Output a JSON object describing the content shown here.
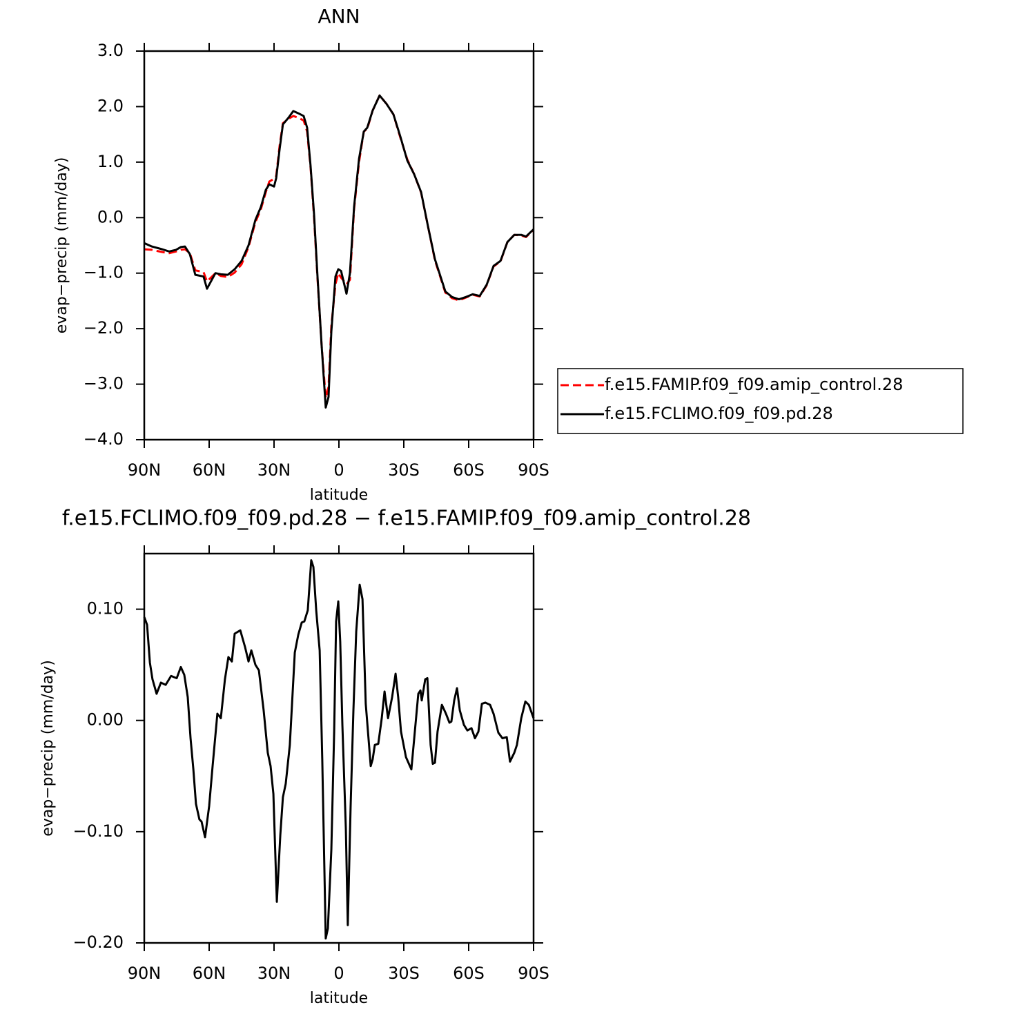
{
  "chart_data": [
    {
      "type": "line",
      "title": "ANN",
      "x_label": "latitude",
      "y_label": "evap−precip (mm/day)",
      "xlim": [
        90,
        -90
      ],
      "xticks": [
        {
          "value": 90,
          "label": "90N"
        },
        {
          "value": 60,
          "label": "60N"
        },
        {
          "value": 30,
          "label": "30N"
        },
        0,
        {
          "value": -30,
          "label": "30S"
        },
        {
          "value": -60,
          "label": "60S"
        },
        {
          "value": -90,
          "label": "90S"
        }
      ],
      "ylim": [
        -4,
        3
      ],
      "yticks": [
        {
          "value": -4,
          "label": "−4.0"
        },
        {
          "value": -3,
          "label": "−3.0"
        },
        {
          "value": -2,
          "label": "−2.0"
        },
        {
          "value": -1,
          "label": "−1.0"
        },
        {
          "value": 0,
          "label": "0.0"
        },
        {
          "value": 1,
          "label": "1.0"
        },
        {
          "value": 2,
          "label": "2.0"
        },
        {
          "value": 3,
          "label": "3.0"
        }
      ],
      "legend": true,
      "legend_position": "right",
      "x": [
        90,
        86.5,
        81.7,
        78.5,
        75.3,
        73.1,
        71.2,
        68.9,
        66.4,
        62.6,
        61.0,
        57.1,
        54.6,
        51.4,
        48.2,
        45.0,
        41.8,
        38.6,
        36.1,
        33.8,
        32.2,
        30.0,
        29.0,
        27.4,
        25.9,
        23.3,
        21.1,
        18.8,
        16.3,
        14.7,
        13.1,
        11.5,
        9.9,
        8.0,
        6.1,
        4.8,
        3.5,
        1.6,
        0.3,
        -1.0,
        -3.5,
        -5.1,
        -7.0,
        -9.3,
        -11.5,
        -13.1,
        -15.6,
        -18.8,
        -22.0,
        -25.2,
        -28.4,
        -31.6,
        -34.8,
        -38.0,
        -41.2,
        -44.4,
        -49.2,
        -52.3,
        -55.5,
        -58.7,
        -61.9,
        -65.1,
        -68.3,
        -71.5,
        -74.7,
        -77.9,
        -81.1,
        -84.3,
        -86.5,
        -90
      ],
      "series": [
        {
          "name": "f.e15.FAMIP.f09_f09.amip_control.28",
          "color": "#ff0000",
          "dashed": true,
          "values": [
            -0.57,
            -0.58,
            -0.62,
            -0.64,
            -0.61,
            -0.58,
            -0.57,
            -0.64,
            -0.95,
            -0.98,
            -1.15,
            -1.0,
            -1.05,
            -1.07,
            -0.99,
            -0.84,
            -0.53,
            -0.08,
            0.15,
            0.46,
            0.65,
            0.7,
            0.75,
            1.3,
            1.7,
            1.78,
            1.83,
            1.8,
            1.75,
            1.55,
            0.9,
            0.0,
            -1.1,
            -2.3,
            -3.25,
            -3.05,
            -1.95,
            -1.2,
            -1.0,
            -1.08,
            -1.2,
            -1.12,
            0.15,
            1.0,
            1.55,
            1.6,
            1.93,
            2.2,
            2.05,
            1.86,
            1.44,
            1.05,
            0.78,
            0.45,
            -0.16,
            -0.77,
            -1.35,
            -1.45,
            -1.49,
            -1.44,
            -1.39,
            -1.42,
            -1.22,
            -0.88,
            -0.79,
            -0.44,
            -0.31,
            -0.32,
            -0.35,
            -0.22
          ]
        },
        {
          "name": "f.e15.FCLIMO.f09_f09.pd.28",
          "color": "#000000",
          "dashed": false,
          "values": [
            -0.46,
            -0.52,
            -0.57,
            -0.61,
            -0.58,
            -0.53,
            -0.52,
            -0.66,
            -1.03,
            -1.06,
            -1.28,
            -1.0,
            -1.02,
            -1.03,
            -0.93,
            -0.78,
            -0.5,
            -0.04,
            0.19,
            0.5,
            0.6,
            0.56,
            0.71,
            1.24,
            1.68,
            1.8,
            1.92,
            1.88,
            1.83,
            1.62,
            0.93,
            0.06,
            -1.06,
            -2.3,
            -3.42,
            -3.23,
            -2.05,
            -1.06,
            -0.93,
            -0.96,
            -1.37,
            -1.0,
            0.19,
            1.06,
            1.55,
            1.62,
            1.93,
            2.2,
            2.05,
            1.86,
            1.46,
            1.03,
            0.78,
            0.46,
            -0.16,
            -0.75,
            -1.33,
            -1.43,
            -1.47,
            -1.43,
            -1.38,
            -1.41,
            -1.21,
            -0.87,
            -0.78,
            -0.44,
            -0.31,
            -0.31,
            -0.34,
            -0.21
          ]
        }
      ]
    },
    {
      "type": "line",
      "title": "f.e15.FCLIMO.f09_f09.pd.28 − f.e15.FAMIP.f09_f09.amip_control.28",
      "x_label": "latitude",
      "y_label": "evap−precip (mm/day)",
      "xlim": [
        90,
        -90
      ],
      "xticks": [
        {
          "value": 90,
          "label": "90N"
        },
        {
          "value": 60,
          "label": "60N"
        },
        {
          "value": 30,
          "label": "30N"
        },
        0,
        {
          "value": -30,
          "label": "30S"
        },
        {
          "value": -60,
          "label": "60S"
        },
        {
          "value": -90,
          "label": "90S"
        }
      ],
      "ylim": [
        -0.2,
        0.15
      ],
      "yticks": [
        {
          "value": -0.2,
          "label": "−0.20"
        },
        {
          "value": -0.1,
          "label": "−0.10"
        },
        {
          "value": 0,
          "label": "0.00"
        },
        {
          "value": 0.1,
          "label": "0.10"
        }
      ],
      "legend": false,
      "color": "#000000",
      "x": [
        90.0,
        88.7,
        87.4,
        86.2,
        84.3,
        82.3,
        80.1,
        77.6,
        75.0,
        73.1,
        71.5,
        69.9,
        68.6,
        67.3,
        66.1,
        64.5,
        63.5,
        61.9,
        60.0,
        58.4,
        56.2,
        54.6,
        52.7,
        51.1,
        49.5,
        48.2,
        45.6,
        43.4,
        41.8,
        40.5,
        38.6,
        37.0,
        34.8,
        32.9,
        31.6,
        30.3,
        28.7,
        27.1,
        25.9,
        24.6,
        22.7,
        20.4,
        18.8,
        17.2,
        16.0,
        14.4,
        12.8,
        11.8,
        10.5,
        8.9,
        7.7,
        6.1,
        5.1,
        3.5,
        2.2,
        1.3,
        0.3,
        -0.6,
        -1.6,
        -3.2,
        -4.1,
        -5.4,
        -6.7,
        -8.0,
        -9.6,
        -10.9,
        -12.4,
        -14.7,
        -15.6,
        -16.6,
        -18.2,
        -19.8,
        -21.1,
        -22.7,
        -24.6,
        -26.2,
        -27.4,
        -28.7,
        -31.0,
        -33.5,
        -35.1,
        -36.7,
        -37.7,
        -38.3,
        -39.9,
        -40.9,
        -42.4,
        -43.4,
        -44.4,
        -45.6,
        -47.6,
        -49.5,
        -51.1,
        -52.0,
        -53.3,
        -54.6,
        -55.9,
        -57.8,
        -59.4,
        -61.3,
        -62.9,
        -64.5,
        -66.1,
        -67.7,
        -69.9,
        -71.5,
        -73.7,
        -75.6,
        -77.6,
        -79.1,
        -81.1,
        -82.3,
        -84.3,
        -86.2,
        -87.8,
        -90.0
      ],
      "values": [
        0.093,
        0.086,
        0.052,
        0.037,
        0.024,
        0.034,
        0.032,
        0.04,
        0.038,
        0.048,
        0.041,
        0.021,
        -0.016,
        -0.044,
        -0.075,
        -0.089,
        -0.091,
        -0.105,
        -0.077,
        -0.041,
        0.006,
        0.002,
        0.037,
        0.057,
        0.053,
        0.078,
        0.081,
        0.066,
        0.053,
        0.063,
        0.05,
        0.045,
        0.009,
        -0.029,
        -0.041,
        -0.066,
        -0.163,
        -0.103,
        -0.069,
        -0.057,
        -0.022,
        0.061,
        0.077,
        0.088,
        0.089,
        0.099,
        0.144,
        0.138,
        0.099,
        0.063,
        -0.035,
        -0.196,
        -0.187,
        -0.116,
        -0.01,
        0.089,
        0.107,
        0.071,
        -0.004,
        -0.097,
        -0.184,
        -0.078,
        0.009,
        0.08,
        0.122,
        0.109,
        0.015,
        -0.041,
        -0.035,
        -0.022,
        -0.021,
        0.002,
        0.026,
        0.002,
        0.021,
        0.042,
        0.021,
        -0.01,
        -0.033,
        -0.044,
        -0.01,
        0.024,
        0.027,
        0.018,
        0.037,
        0.038,
        -0.022,
        -0.039,
        -0.038,
        -0.01,
        0.014,
        0.006,
        -0.002,
        -0.001,
        0.018,
        0.029,
        0.009,
        -0.004,
        -0.009,
        -0.007,
        -0.016,
        -0.01,
        0.015,
        0.016,
        0.014,
        0.006,
        -0.011,
        -0.016,
        -0.015,
        -0.037,
        -0.029,
        -0.022,
        0.002,
        0.017,
        0.014,
        0.002
      ]
    }
  ]
}
